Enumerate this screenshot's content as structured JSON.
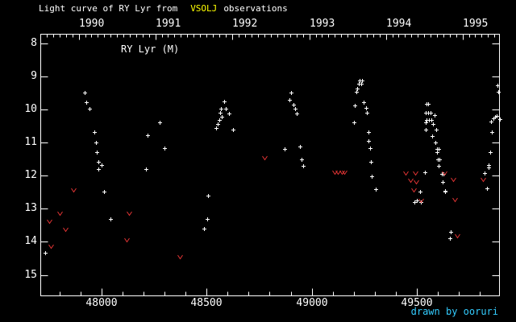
{
  "title": {
    "prefix": "Light curve of RY Lyr from",
    "highlight": "VSOLJ",
    "suffix": "observations"
  },
  "inner_label": "RY Lyr (M)",
  "credit": "drawn by ooruri",
  "colors": {
    "background": "#000000",
    "foreground": "#ffffff",
    "highlight": "#ffff00",
    "upper_limit": "#e23434",
    "credit": "#33ccff"
  },
  "chart_data": {
    "type": "scatter",
    "title": "Light curve of RY Lyr from VSOLJ observations",
    "x_axis": {
      "range": [
        47711,
        49893
      ],
      "major_ticks": [
        48000,
        48500,
        49000,
        49500
      ],
      "major_tick_labels": [
        "48000",
        "48500",
        "49000",
        "49500"
      ],
      "minor_tick_step": 100
    },
    "top_axis": {
      "years": [
        {
          "label": "1990",
          "jd": 47892.5
        },
        {
          "label": "1991",
          "jd": 48257.5
        },
        {
          "label": "1992",
          "jd": 48622.5
        },
        {
          "label": "1993",
          "jd": 48988.5
        },
        {
          "label": "1994",
          "jd": 49353.5
        },
        {
          "label": "1995",
          "jd": 49718.5
        }
      ],
      "minor_ticks": "month-starts"
    },
    "y_axis": {
      "range": [
        7.73,
        15.63
      ],
      "ticks": [
        8,
        9,
        10,
        11,
        12,
        13,
        14,
        15
      ],
      "tick_labels": [
        "8",
        "9",
        "10",
        "11",
        "12",
        "13",
        "14",
        "15"
      ],
      "direction": "magnitude-increases-downward"
    },
    "grid": false,
    "legend": false,
    "series": [
      {
        "name": "observations",
        "marker": "plus",
        "color": "#ffffff",
        "points": [
          [
            47731,
            14.32
          ],
          [
            47921,
            9.49
          ],
          [
            47928,
            9.79
          ],
          [
            47944,
            9.99
          ],
          [
            47966,
            10.68
          ],
          [
            47973,
            11.0
          ],
          [
            47976,
            11.29
          ],
          [
            47986,
            11.8
          ],
          [
            47987,
            11.58
          ],
          [
            48000,
            11.69
          ],
          [
            48013,
            12.48
          ],
          [
            48043,
            13.31
          ],
          [
            48212,
            11.8
          ],
          [
            48220,
            10.79
          ],
          [
            48276,
            10.38
          ],
          [
            48300,
            11.18
          ],
          [
            48488,
            13.6
          ],
          [
            48503,
            13.31
          ],
          [
            48508,
            12.61
          ],
          [
            48546,
            10.55
          ],
          [
            48554,
            10.45
          ],
          [
            48561,
            10.33
          ],
          [
            48565,
            10.11
          ],
          [
            48569,
            9.99
          ],
          [
            48573,
            10.23
          ],
          [
            48583,
            9.77
          ],
          [
            48592,
            9.99
          ],
          [
            48607,
            10.13
          ],
          [
            48627,
            10.6
          ],
          [
            48872,
            11.19
          ],
          [
            48895,
            9.7
          ],
          [
            48903,
            9.49
          ],
          [
            48914,
            9.85
          ],
          [
            48921,
            9.98
          ],
          [
            48928,
            10.12
          ],
          [
            48944,
            11.11
          ],
          [
            48951,
            11.51
          ],
          [
            48958,
            11.71
          ],
          [
            49200,
            10.39
          ],
          [
            49203,
            9.89
          ],
          [
            49211,
            9.48
          ],
          [
            49215,
            9.37
          ],
          [
            49222,
            9.23
          ],
          [
            49226,
            9.12
          ],
          [
            49234,
            9.23
          ],
          [
            49238,
            9.12
          ],
          [
            49245,
            9.78
          ],
          [
            49257,
            9.96
          ],
          [
            49262,
            10.09
          ],
          [
            49268,
            10.69
          ],
          [
            49268,
            10.96
          ],
          [
            49276,
            11.17
          ],
          [
            49280,
            11.59
          ],
          [
            49285,
            12.01
          ],
          [
            49304,
            12.41
          ],
          [
            49488,
            12.8
          ],
          [
            49501,
            12.74
          ],
          [
            49514,
            12.48
          ],
          [
            49519,
            12.8
          ],
          [
            49538,
            11.89
          ],
          [
            49541,
            10.4
          ],
          [
            49543,
            10.09
          ],
          [
            49543,
            10.6
          ],
          [
            49546,
            9.84
          ],
          [
            49546,
            10.32
          ],
          [
            49555,
            9.84
          ],
          [
            49555,
            10.09
          ],
          [
            49558,
            10.32
          ],
          [
            49565,
            10.09
          ],
          [
            49568,
            10.32
          ],
          [
            49572,
            10.8
          ],
          [
            49576,
            10.43
          ],
          [
            49583,
            10.18
          ],
          [
            49589,
            11.01
          ],
          [
            49591,
            10.61
          ],
          [
            49595,
            11.2
          ],
          [
            49597,
            11.3
          ],
          [
            49599,
            11.5
          ],
          [
            49605,
            11.2
          ],
          [
            49605,
            11.71
          ],
          [
            49609,
            11.5
          ],
          [
            49618,
            11.95
          ],
          [
            49624,
            12.19
          ],
          [
            49628,
            11.95
          ],
          [
            49633,
            12.46
          ],
          [
            49635,
            12.47
          ],
          [
            49658,
            13.9
          ],
          [
            49661,
            13.69
          ],
          [
            49821,
            11.93
          ],
          [
            49835,
            12.39
          ],
          [
            49840,
            11.67
          ],
          [
            49840,
            11.76
          ],
          [
            49850,
            11.28
          ],
          [
            49854,
            10.37
          ],
          [
            49856,
            10.68
          ],
          [
            49863,
            10.27
          ],
          [
            49872,
            10.22
          ],
          [
            49881,
            10.19
          ],
          [
            49884,
            9.28
          ],
          [
            49889,
            9.47
          ],
          [
            49893,
            10.3
          ]
        ]
      },
      {
        "name": "fainter-than upper limits",
        "marker": "v",
        "color": "#e23434",
        "points": [
          [
            47753,
            13.37
          ],
          [
            47759,
            14.14
          ],
          [
            47803,
            13.15
          ],
          [
            47827,
            13.63
          ],
          [
            47865,
            12.44
          ],
          [
            48120,
            13.94
          ],
          [
            48130,
            13.14
          ],
          [
            48373,
            14.44
          ],
          [
            48775,
            11.45
          ],
          [
            49109,
            11.9
          ],
          [
            49124,
            11.9
          ],
          [
            49143,
            11.9
          ],
          [
            49155,
            11.9
          ],
          [
            49447,
            11.93
          ],
          [
            49469,
            12.13
          ],
          [
            49484,
            12.44
          ],
          [
            49492,
            11.93
          ],
          [
            49496,
            12.2
          ],
          [
            49518,
            12.74
          ],
          [
            49630,
            11.93
          ],
          [
            49673,
            12.12
          ],
          [
            49679,
            12.73
          ],
          [
            49691,
            13.83
          ],
          [
            49815,
            12.11
          ]
        ]
      }
    ]
  }
}
